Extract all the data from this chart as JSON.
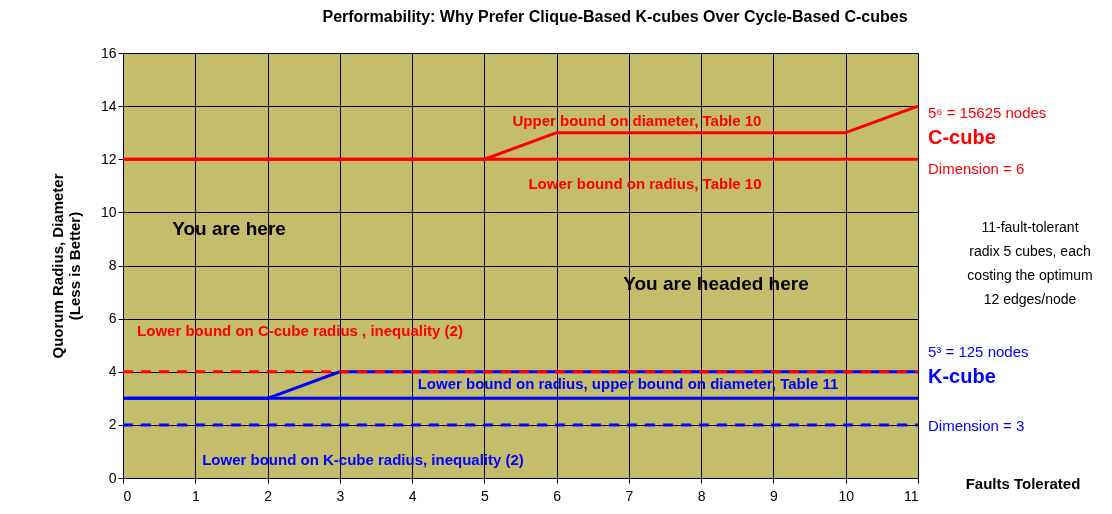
{
  "chart_data": {
    "type": "line",
    "title": "Performability: Why Prefer Clique-Based K-cubes Over Cycle-Based C-cubes",
    "xlabel": "Faults Tolerated",
    "ylabel": "Quorum Radius, Diameter\n(Less is Better)",
    "xlim": [
      0,
      11
    ],
    "xticks": [
      0,
      1,
      2,
      3,
      4,
      5,
      6,
      7,
      8,
      9,
      10,
      11
    ],
    "ylim": [
      0,
      16
    ],
    "yticks": [
      0,
      2,
      4,
      6,
      8,
      10,
      12,
      14,
      16
    ],
    "grid": true,
    "marker": "none",
    "series": [
      {
        "color": "#ff0000",
        "x": [
          0,
          5,
          6,
          10,
          11
        ],
        "values": [
          12,
          12,
          13,
          13,
          14
        ],
        "line_style": "solid"
      },
      {
        "color": "#ff0000",
        "x": [
          0,
          11
        ],
        "values": [
          12,
          12
        ],
        "line_style": "solid"
      },
      {
        "color": "#0000ff",
        "x": [
          0,
          2,
          3,
          11
        ],
        "values": [
          3,
          3,
          4,
          4
        ],
        "line_style": "solid"
      },
      {
        "color": "#0000ff",
        "x": [
          0,
          11
        ],
        "values": [
          3,
          3
        ],
        "line_style": "solid"
      },
      {
        "color": "#ff0000",
        "x": [
          0,
          11
        ],
        "values": [
          4,
          4
        ],
        "line_style": "dashed"
      },
      {
        "color": "#0000ff",
        "x": [
          0,
          11
        ],
        "values": [
          2,
          2
        ],
        "line_style": "dashed"
      }
    ],
    "annotations": [
      "Upper bound on diameter, Table 10",
      "Lower bound on radius, Table 10",
      "Lower bound on C-cube radius , inequality (2)",
      "Lower bound on radius, upper bound on diameter, Table 11",
      "Lower bound on K-cube radius, inequality (2)",
      "You are here",
      "You are headed here",
      "5⁶ = 15625 nodes",
      "C-cube",
      "Dimension = 6",
      "11-fault-tolerant\nradix 5 cubes, each\ncosting the optimum\n12 edges/node",
      "5³ = 125 nodes",
      "K-cube",
      "Dimension = 3"
    ]
  }
}
